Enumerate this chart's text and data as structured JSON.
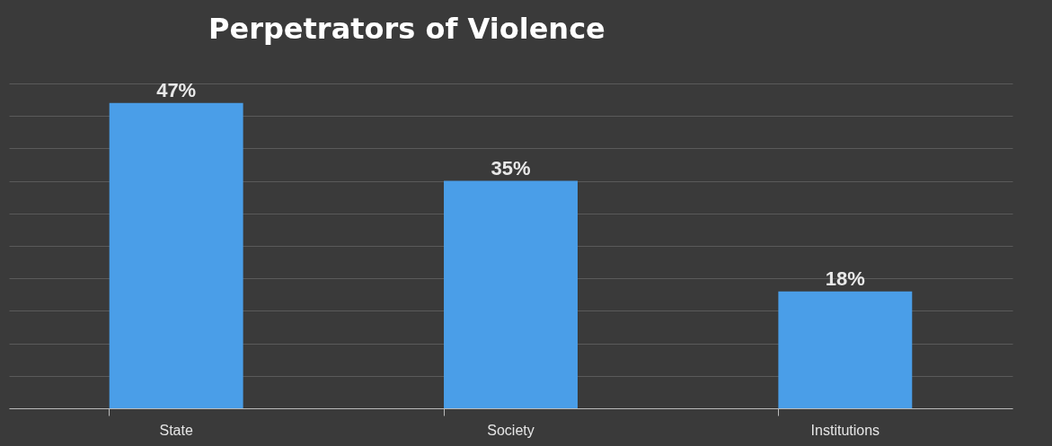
{
  "chart_data": {
    "type": "bar",
    "title": "Perpetrators of Violence",
    "categories": [
      "State",
      "Society",
      "Institutions"
    ],
    "values": [
      47,
      35,
      18
    ],
    "value_labels": [
      "47%",
      "35%",
      "18%"
    ],
    "color": "#4a9ee8",
    "ylim": [
      0,
      50
    ],
    "grid": "y",
    "tick_labels": "x"
  }
}
